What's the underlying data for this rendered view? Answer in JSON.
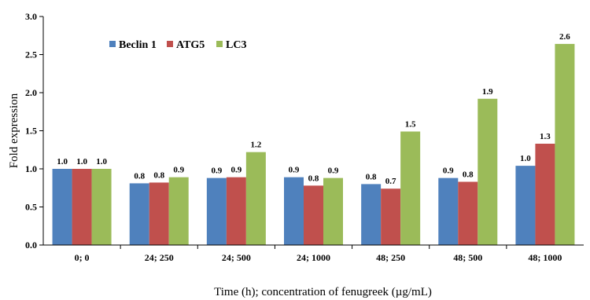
{
  "chart_data": {
    "type": "bar",
    "title": "",
    "xlabel": "Time  (h); concentration of fenugreek (µg/mL)",
    "ylabel": "Fold expression",
    "ylim": [
      0,
      3.0
    ],
    "yticks": [
      "0.0",
      "0.5",
      "1.0",
      "1.5",
      "2.0",
      "2.5",
      "3.0"
    ],
    "categories": [
      "0; 0",
      "24; 250",
      "24; 500",
      "24; 1000",
      "48; 250",
      "48; 500",
      "48; 1000"
    ],
    "legend_position": "top-left",
    "grid": false,
    "series": [
      {
        "name": "Beclin 1",
        "color": "#4f81bd",
        "values": [
          1.0,
          0.81,
          0.88,
          0.89,
          0.8,
          0.88,
          1.04
        ],
        "labels": [
          "1.0",
          "0.8",
          "0.9",
          "0.9",
          "0.8",
          "0.9",
          "1.0"
        ]
      },
      {
        "name": "ATG5",
        "color": "#c0504d",
        "values": [
          1.0,
          0.82,
          0.89,
          0.78,
          0.74,
          0.83,
          1.33
        ],
        "labels": [
          "1.0",
          "0.8",
          "0.9",
          "0.8",
          "0.7",
          "0.8",
          "1.3"
        ]
      },
      {
        "name": "LC3",
        "color": "#9bbb59",
        "values": [
          1.0,
          0.89,
          1.22,
          0.88,
          1.49,
          1.92,
          2.64
        ],
        "labels": [
          "1.0",
          "0.9",
          "1.2",
          "0.9",
          "1.5",
          "1.9",
          "2.6"
        ]
      }
    ]
  }
}
